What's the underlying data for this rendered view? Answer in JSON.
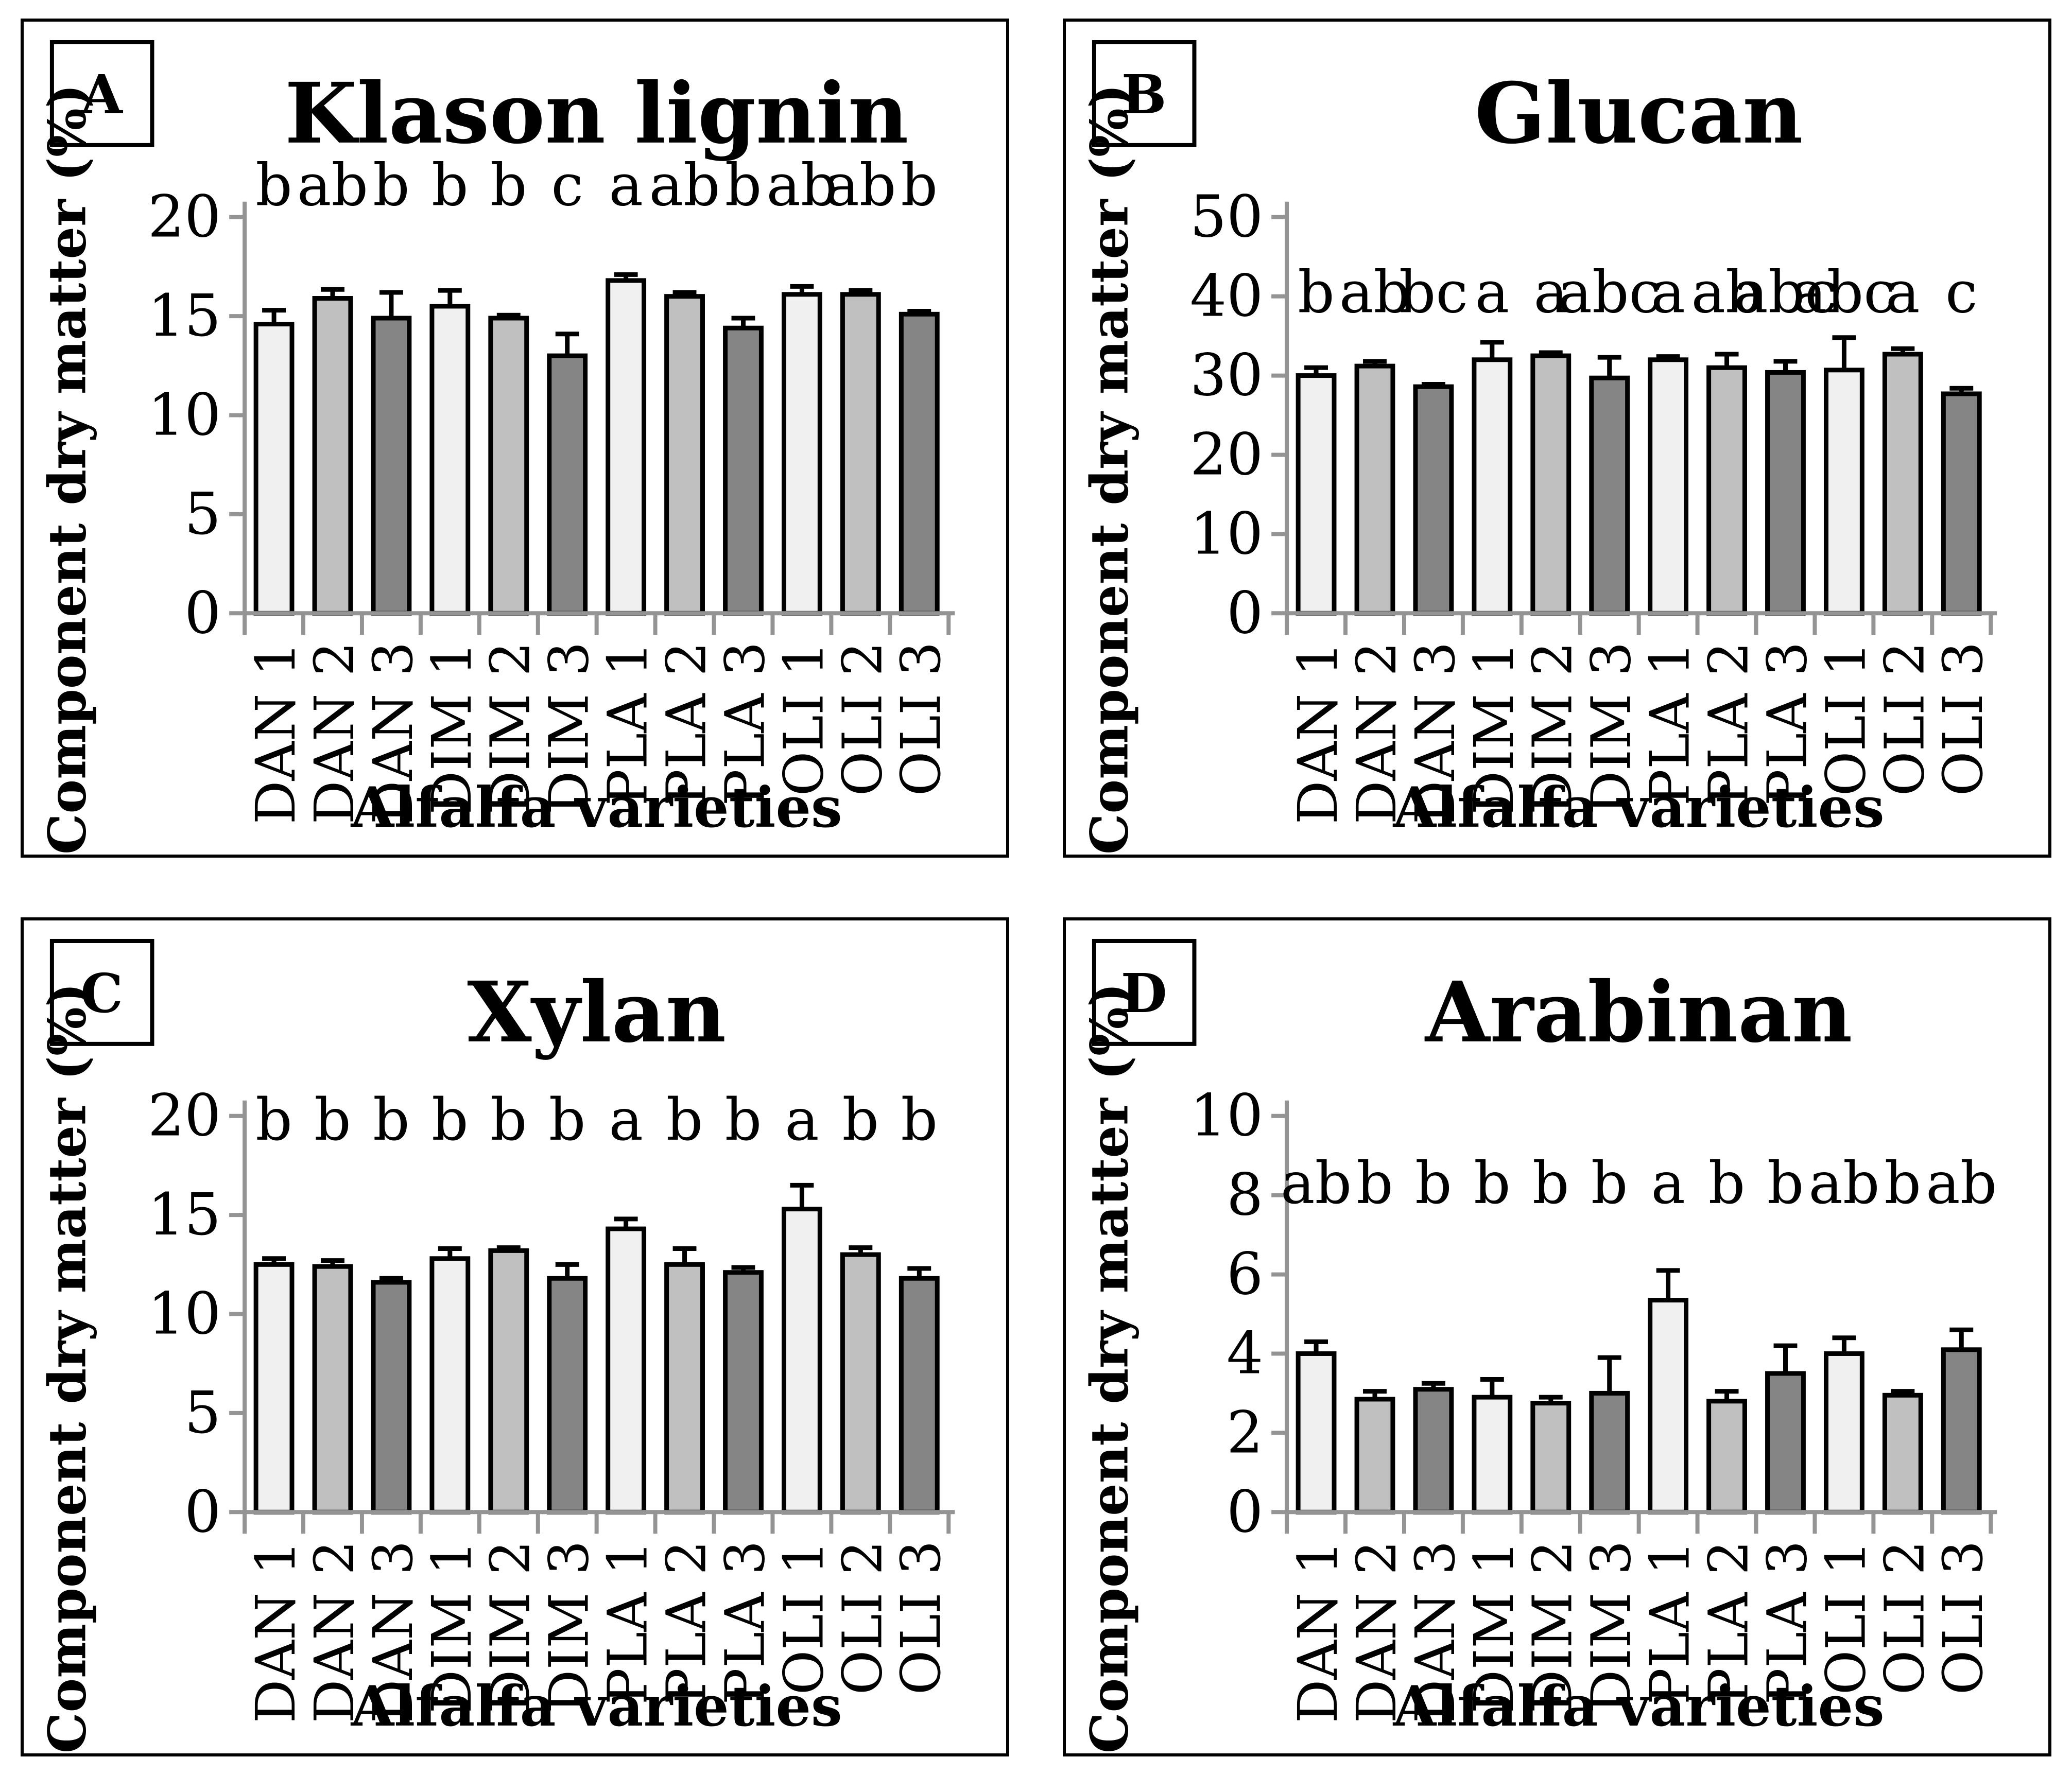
{
  "figure": {
    "background": "#ffffff",
    "layout": "2x2-grid-of-bar-charts"
  },
  "style": {
    "bar_fills": [
      "#f0f0f0",
      "#c0c0c0",
      "#858585"
    ],
    "bar_border_color": "#000000",
    "error_bar_color": "#000000",
    "axis_color": "#949494",
    "text_color": "#000000"
  },
  "chart_data": [
    {
      "type": "bar",
      "panel_label": "A",
      "title": "Klason lignin",
      "xlabel": "Alfalfa varieties",
      "ylabel": "Component dry matter (%)",
      "ylim": [
        0,
        20
      ],
      "ystep": 5,
      "grid": "off",
      "legend": "none",
      "categories": [
        "DAN 1",
        "DAN 2",
        "DAN 3",
        "DIM 1",
        "DIM 2",
        "DIM 3",
        "PLA 1",
        "PLA 2",
        "PLA 3",
        "OLI 1",
        "OLI 2",
        "OLI 3"
      ],
      "values": [
        14.6,
        15.9,
        14.9,
        15.5,
        14.9,
        13.0,
        16.8,
        16.0,
        14.4,
        16.1,
        16.1,
        15.1
      ],
      "errors": [
        0.7,
        0.45,
        1.3,
        0.8,
        0.15,
        1.1,
        0.3,
        0.2,
        0.5,
        0.4,
        0.2,
        0.15
      ],
      "sig_letters": [
        "b",
        "ab",
        "b",
        "b",
        "b",
        "c",
        "a",
        "ab",
        "b",
        "ab",
        "ab",
        "b"
      ],
      "letters_y_value": 20.6
    },
    {
      "type": "bar",
      "panel_label": "B",
      "title": "Glucan",
      "xlabel": "Alfalfa varieties",
      "ylabel": "Component dry matter (%)",
      "ylim": [
        0,
        50
      ],
      "ystep": 10,
      "grid": "off",
      "legend": "none",
      "categories": [
        "DAN 1",
        "DAN 2",
        "DAN 3",
        "DIM 1",
        "DIM 2",
        "DIM 3",
        "PLA 1",
        "PLA 2",
        "PLA 3",
        "OLI 1",
        "OLI 2",
        "OLI 3"
      ],
      "values": [
        30.0,
        31.2,
        28.6,
        32.0,
        32.5,
        29.7,
        32.0,
        31.0,
        30.4,
        30.7,
        32.7,
        27.7
      ],
      "errors": [
        1.0,
        0.6,
        0.3,
        2.2,
        0.4,
        2.6,
        0.4,
        1.7,
        1.4,
        4.1,
        0.7,
        0.7
      ],
      "sig_letters": [
        "b",
        "ab",
        "bc",
        "a",
        "a",
        "abc",
        "a",
        "ab",
        "abc",
        "abc",
        "a",
        "c"
      ],
      "letters_y_value": 38.0
    },
    {
      "type": "bar",
      "panel_label": "C",
      "title": "Xylan",
      "xlabel": "Alfalfa varieties",
      "ylabel": "Component dry matter (%)",
      "ylim": [
        0,
        20
      ],
      "ystep": 5,
      "grid": "off",
      "legend": "none",
      "categories": [
        "DAN 1",
        "DAN 2",
        "DAN 3",
        "DIM 1",
        "DIM 2",
        "DIM 3",
        "PLA 1",
        "PLA 2",
        "PLA 3",
        "OLI 1",
        "OLI 2",
        "OLI 3"
      ],
      "values": [
        12.5,
        12.4,
        11.6,
        12.8,
        13.2,
        11.8,
        14.3,
        12.5,
        12.1,
        15.3,
        13.0,
        11.8
      ],
      "errors": [
        0.3,
        0.3,
        0.2,
        0.5,
        0.15,
        0.7,
        0.5,
        0.8,
        0.25,
        1.2,
        0.35,
        0.5
      ],
      "sig_letters": [
        "b",
        "b",
        "b",
        "b",
        "b",
        "b",
        "a",
        "b",
        "b",
        "a",
        "b",
        "b"
      ],
      "letters_y_value": 18.8
    },
    {
      "type": "bar",
      "panel_label": "D",
      "title": "Arabinan",
      "xlabel": "Alfalfa varieties",
      "ylabel": "Component dry matter (%)",
      "ylim": [
        0,
        10
      ],
      "ystep": 2,
      "grid": "off",
      "legend": "none",
      "categories": [
        "DAN 1",
        "DAN 2",
        "DAN 3",
        "DIM 1",
        "DIM 2",
        "DIM 3",
        "PLA 1",
        "PLA 2",
        "PLA 3",
        "OLI 1",
        "OLI 2",
        "OLI 3"
      ],
      "values": [
        4.0,
        2.85,
        3.1,
        2.9,
        2.75,
        3.0,
        5.35,
        2.8,
        3.5,
        4.0,
        2.95,
        4.1
      ],
      "errors": [
        0.3,
        0.2,
        0.15,
        0.45,
        0.15,
        0.9,
        0.75,
        0.25,
        0.7,
        0.4,
        0.1,
        0.5
      ],
      "sig_letters": [
        "ab",
        "b",
        "b",
        "b",
        "b",
        "b",
        "a",
        "b",
        "b",
        "ab",
        "b",
        "ab"
      ],
      "letters_y_value": 7.8
    }
  ]
}
